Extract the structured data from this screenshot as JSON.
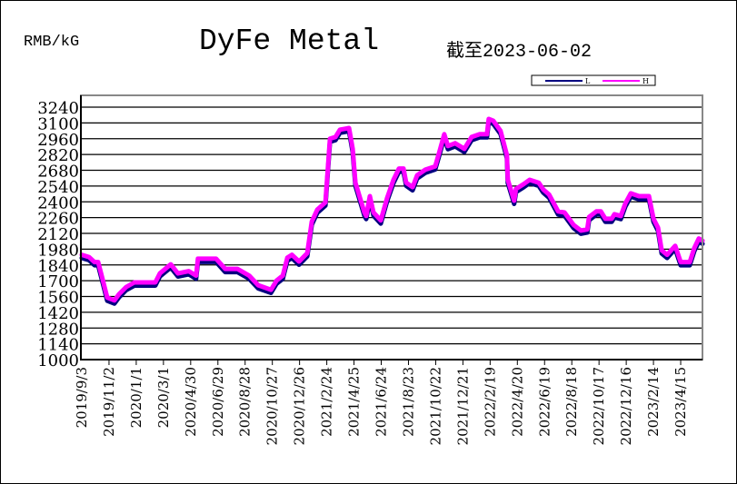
{
  "header": {
    "unit": "RMB/kG",
    "title": "DyFe Metal",
    "as_of": "截至2023-06-02"
  },
  "chart_data": {
    "type": "line",
    "title": "DyFe Metal",
    "ylabel": "RMB/kG",
    "ylim": [
      1000,
      3240
    ],
    "yticks": [
      1000,
      1140,
      1280,
      1420,
      1560,
      1700,
      1840,
      1980,
      2120,
      2260,
      2400,
      2540,
      2680,
      2820,
      2960,
      3100,
      3240
    ],
    "xlim": [
      "2019-09-03",
      "2023-06-02"
    ],
    "xtick_labels": [
      "2019/9/3",
      "2019/11/2",
      "2020/1/1",
      "2020/3/1",
      "2020/4/30",
      "2020/6/29",
      "2020/8/28",
      "2020/10/27",
      "2020/12/26",
      "2021/2/24",
      "2021/4/25",
      "2021/6/24",
      "2021/8/23",
      "2021/10/22",
      "2021/12/21",
      "2022/2/19",
      "2022/4/20",
      "2022/6/19",
      "2022/8/18",
      "2022/10/17",
      "2022/12/16",
      "2023/2/14",
      "2023/4/15"
    ],
    "grid": true,
    "legend": "top-right",
    "x": [
      "2019-09-03",
      "2019-09-19",
      "2019-10-01",
      "2019-10-09",
      "2019-10-19",
      "2019-10-29",
      "2019-11-14",
      "2019-11-24",
      "2019-12-10",
      "2019-12-28",
      "2020-02-12",
      "2020-02-22",
      "2020-03-17",
      "2020-04-02",
      "2020-04-26",
      "2020-05-12",
      "2020-05-16",
      "2020-06-25",
      "2020-07-15",
      "2020-08-11",
      "2020-09-06",
      "2020-09-26",
      "2020-10-24",
      "2020-11-05",
      "2020-11-19",
      "2020-11-29",
      "2020-12-09",
      "2020-12-25",
      "2021-01-12",
      "2021-01-22",
      "2021-02-03",
      "2021-02-21",
      "2021-03-03",
      "2021-03-15",
      "2021-03-25",
      "2021-04-14",
      "2021-04-22",
      "2021-04-28",
      "2021-05-18",
      "2021-05-22",
      "2021-05-30",
      "2021-06-07",
      "2021-06-23",
      "2021-07-07",
      "2021-07-21",
      "2021-08-02",
      "2021-08-12",
      "2021-08-18",
      "2021-09-01",
      "2021-09-11",
      "2021-09-29",
      "2021-10-21",
      "2021-10-31",
      "2021-11-10",
      "2021-11-18",
      "2021-12-04",
      "2021-12-24",
      "2022-01-09",
      "2022-01-27",
      "2022-02-12",
      "2022-02-16",
      "2022-02-26",
      "2022-03-14",
      "2022-03-28",
      "2022-03-30",
      "2022-04-13",
      "2022-04-17",
      "2022-05-03",
      "2022-05-17",
      "2022-06-06",
      "2022-06-16",
      "2022-06-29",
      "2022-07-19",
      "2022-08-02",
      "2022-08-22",
      "2022-09-07",
      "2022-09-21",
      "2022-09-25",
      "2022-10-11",
      "2022-10-21",
      "2022-10-31",
      "2022-11-14",
      "2022-11-20",
      "2022-12-04",
      "2022-12-14",
      "2022-12-26",
      "2023-01-13",
      "2023-02-04",
      "2023-02-14",
      "2023-02-24",
      "2023-03-04",
      "2023-03-16",
      "2023-04-03",
      "2023-04-15",
      "2023-05-05",
      "2023-05-15",
      "2023-05-25",
      "2023-06-02"
    ],
    "series": [
      {
        "name": "L",
        "color": "#000080",
        "values": [
          1910,
          1890,
          1845,
          1845,
          1690,
          1530,
          1505,
          1560,
          1625,
          1665,
          1665,
          1745,
          1825,
          1745,
          1765,
          1725,
          1875,
          1875,
          1785,
          1785,
          1725,
          1640,
          1600,
          1680,
          1725,
          1885,
          1910,
          1850,
          1925,
          2205,
          2310,
          2375,
          2940,
          2955,
          3020,
          3035,
          2850,
          2550,
          2285,
          2255,
          2430,
          2285,
          2215,
          2415,
          2575,
          2675,
          2675,
          2550,
          2510,
          2615,
          2665,
          2695,
          2835,
          2980,
          2875,
          2900,
          2850,
          2955,
          2980,
          2980,
          3115,
          3100,
          3010,
          2795,
          2575,
          2390,
          2495,
          2535,
          2575,
          2550,
          2490,
          2445,
          2295,
          2285,
          2175,
          2125,
          2135,
          2245,
          2295,
          2295,
          2230,
          2230,
          2270,
          2255,
          2365,
          2455,
          2430,
          2430,
          2230,
          2150,
          1950,
          1910,
          1990,
          1845,
          1845,
          1970,
          2055,
          2035
        ]
      },
      {
        "name": "H",
        "color": "#FF00FF",
        "values": [
          1930,
          1910,
          1865,
          1865,
          1710,
          1550,
          1525,
          1580,
          1645,
          1685,
          1685,
          1765,
          1845,
          1765,
          1785,
          1745,
          1895,
          1895,
          1805,
          1805,
          1745,
          1660,
          1620,
          1700,
          1745,
          1905,
          1930,
          1870,
          1945,
          2225,
          2330,
          2395,
          2960,
          2975,
          3040,
          3055,
          2870,
          2570,
          2305,
          2275,
          2450,
          2305,
          2235,
          2435,
          2595,
          2695,
          2695,
          2570,
          2530,
          2635,
          2685,
          2715,
          2855,
          3000,
          2895,
          2920,
          2870,
          2975,
          3000,
          3000,
          3135,
          3120,
          3030,
          2815,
          2595,
          2410,
          2515,
          2555,
          2595,
          2570,
          2510,
          2465,
          2315,
          2305,
          2195,
          2145,
          2155,
          2265,
          2315,
          2315,
          2250,
          2250,
          2290,
          2275,
          2385,
          2475,
          2450,
          2450,
          2250,
          2170,
          1970,
          1930,
          2010,
          1865,
          1865,
          1990,
          2075,
          2055
        ]
      }
    ]
  }
}
